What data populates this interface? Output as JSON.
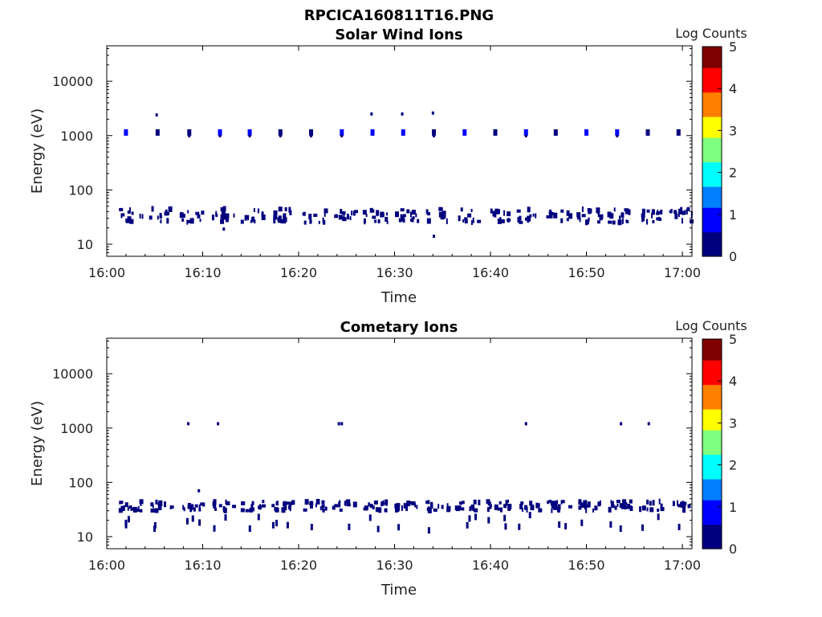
{
  "figure_title": "RPCICA160811T16.PNG",
  "colormap": [
    "#00007f",
    "#0000ff",
    "#007fff",
    "#00ffff",
    "#7fff7f",
    "#ffff00",
    "#ff7f00",
    "#ff0000",
    "#7f0000"
  ],
  "chart_data": [
    {
      "type": "heatmap",
      "title": "Solar Wind Ions",
      "xlabel": "Time",
      "ylabel": "Energy (eV)",
      "xlim": [
        "16:00",
        "17:01"
      ],
      "xticks": [
        "16:00",
        "16:10",
        "16:20",
        "16:30",
        "16:40",
        "16:50",
        "17:00"
      ],
      "ylim": [
        6,
        45000
      ],
      "yscale": "log",
      "yticks": [
        10,
        100,
        1000,
        10000
      ],
      "ytick_labels": [
        "10",
        "100",
        "1000",
        "10000"
      ],
      "colorbar": {
        "label": "Log Counts",
        "range": [
          0,
          5
        ],
        "ticks": [
          "0",
          "1",
          "2",
          "3",
          "4",
          "5"
        ]
      },
      "bursts_minutes": [
        2.2,
        5.4,
        8.6,
        11.8,
        14.9,
        18.1,
        21.3,
        24.5,
        27.7,
        30.9,
        34.1,
        37.3,
        40.5,
        43.7,
        46.8,
        50.0,
        53.2,
        56.4,
        59.6
      ],
      "band_energy_ev": [
        25,
        45
      ],
      "band2_energy_ev": [
        1000,
        1300
      ],
      "band2_minutes": [
        2.0,
        5.3,
        8.6,
        11.8,
        14.9,
        18.1,
        21.3,
        24.5,
        27.7,
        30.9,
        34.1,
        37.3,
        40.5,
        43.7,
        46.8,
        50.0,
        53.2,
        56.4,
        59.6
      ],
      "isolated_pixels": [
        [
          5.2,
          2400
        ],
        [
          27.6,
          2500
        ],
        [
          30.8,
          2500
        ],
        [
          34.0,
          2600
        ],
        [
          12.2,
          19
        ],
        [
          34.1,
          14
        ]
      ],
      "value_log_counts": 0.3
    },
    {
      "type": "heatmap",
      "title": "Cometary Ions",
      "xlabel": "Time",
      "ylabel": "Energy (eV)",
      "xlim": [
        "16:00",
        "17:01"
      ],
      "xticks": [
        "16:00",
        "16:10",
        "16:20",
        "16:30",
        "16:40",
        "16:50",
        "17:00"
      ],
      "ylim": [
        6,
        45000
      ],
      "yscale": "log",
      "yticks": [
        10,
        100,
        1000,
        10000
      ],
      "ytick_labels": [
        "10",
        "100",
        "1000",
        "10000"
      ],
      "colorbar": {
        "label": "Log Counts",
        "range": [
          0,
          5
        ],
        "ticks": [
          "0",
          "1",
          "2",
          "3",
          "4",
          "5"
        ]
      },
      "bursts_minutes": [
        2.2,
        5.4,
        8.6,
        11.8,
        14.9,
        18.1,
        21.3,
        24.5,
        27.7,
        30.9,
        34.1,
        37.3,
        40.5,
        43.7,
        46.8,
        50.0,
        53.2,
        56.4,
        59.6
      ],
      "band_energy_ev": [
        30,
        45
      ],
      "tail_energy_ev": [
        13,
        25
      ],
      "isolated_pixels": [
        [
          8.5,
          1200
        ],
        [
          11.6,
          1200
        ],
        [
          24.2,
          1200
        ],
        [
          24.5,
          1200
        ],
        [
          43.7,
          1200
        ],
        [
          53.6,
          1200
        ],
        [
          56.5,
          1200
        ],
        [
          9.6,
          70
        ]
      ],
      "value_log_counts": 0.3
    }
  ]
}
